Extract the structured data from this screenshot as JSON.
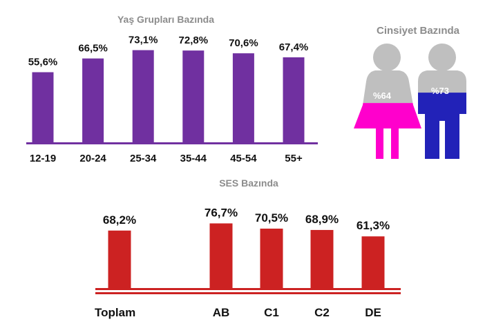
{
  "chart_data": [
    {
      "type": "bar",
      "title": "Yaş Grupları Bazında",
      "categories": [
        "12-19",
        "20-24",
        "25-34",
        "35-44",
        "45-54",
        "55+"
      ],
      "values": [
        55.6,
        66.5,
        73.1,
        72.8,
        70.6,
        67.4
      ],
      "value_labels": [
        "55,6%",
        "66,5%",
        "73,1%",
        "72,8%",
        "70,6%",
        "67,4%"
      ],
      "color": "#7030a0"
    },
    {
      "type": "bar",
      "title": "Cinsiyet Bazında",
      "categories": [
        "female",
        "male"
      ],
      "values": [
        64,
        73
      ],
      "value_labels": [
        "%64",
        "%73"
      ],
      "colors": {
        "female": "#ff00cc",
        "male": "#2222b8",
        "empty": "#bfbfbf"
      }
    },
    {
      "type": "bar",
      "title": "SES Bazında",
      "categories": [
        "Toplam",
        "AB",
        "C1",
        "C2",
        "DE"
      ],
      "values": [
        68.2,
        76.7,
        70.5,
        68.9,
        61.3
      ],
      "value_labels": [
        "68,2%",
        "76,7%",
        "70,5%",
        "68,9%",
        "61,3%"
      ],
      "color": "#cc2222"
    }
  ]
}
